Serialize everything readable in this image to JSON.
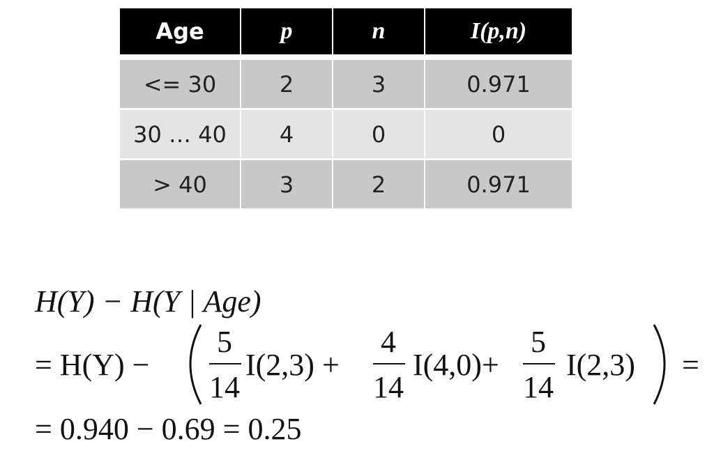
{
  "table": {
    "header": [
      "Age",
      "p",
      "n",
      "I(p,n)"
    ],
    "rows": [
      [
        "<= 30",
        "2",
        "3",
        "0.971"
      ],
      [
        "30 … 40",
        "4",
        "0",
        "0"
      ],
      [
        "> 40",
        "3",
        "2",
        "0.971"
      ]
    ]
  },
  "formula": {
    "line1": "H(Y) − H(Y | Age)",
    "line2": {
      "start": "= H(Y) −",
      "terms": [
        {
          "numerator": "5",
          "denominator": "14",
          "factor": "I(2,3) +"
        },
        {
          "numerator": "4",
          "denominator": "14",
          "factor": "I(4,0)+"
        },
        {
          "numerator": "5",
          "denominator": "14",
          "factor": "I(2,3)"
        }
      ],
      "end": "="
    },
    "line3": "= 0.940 − 0.69 = 0.25"
  }
}
